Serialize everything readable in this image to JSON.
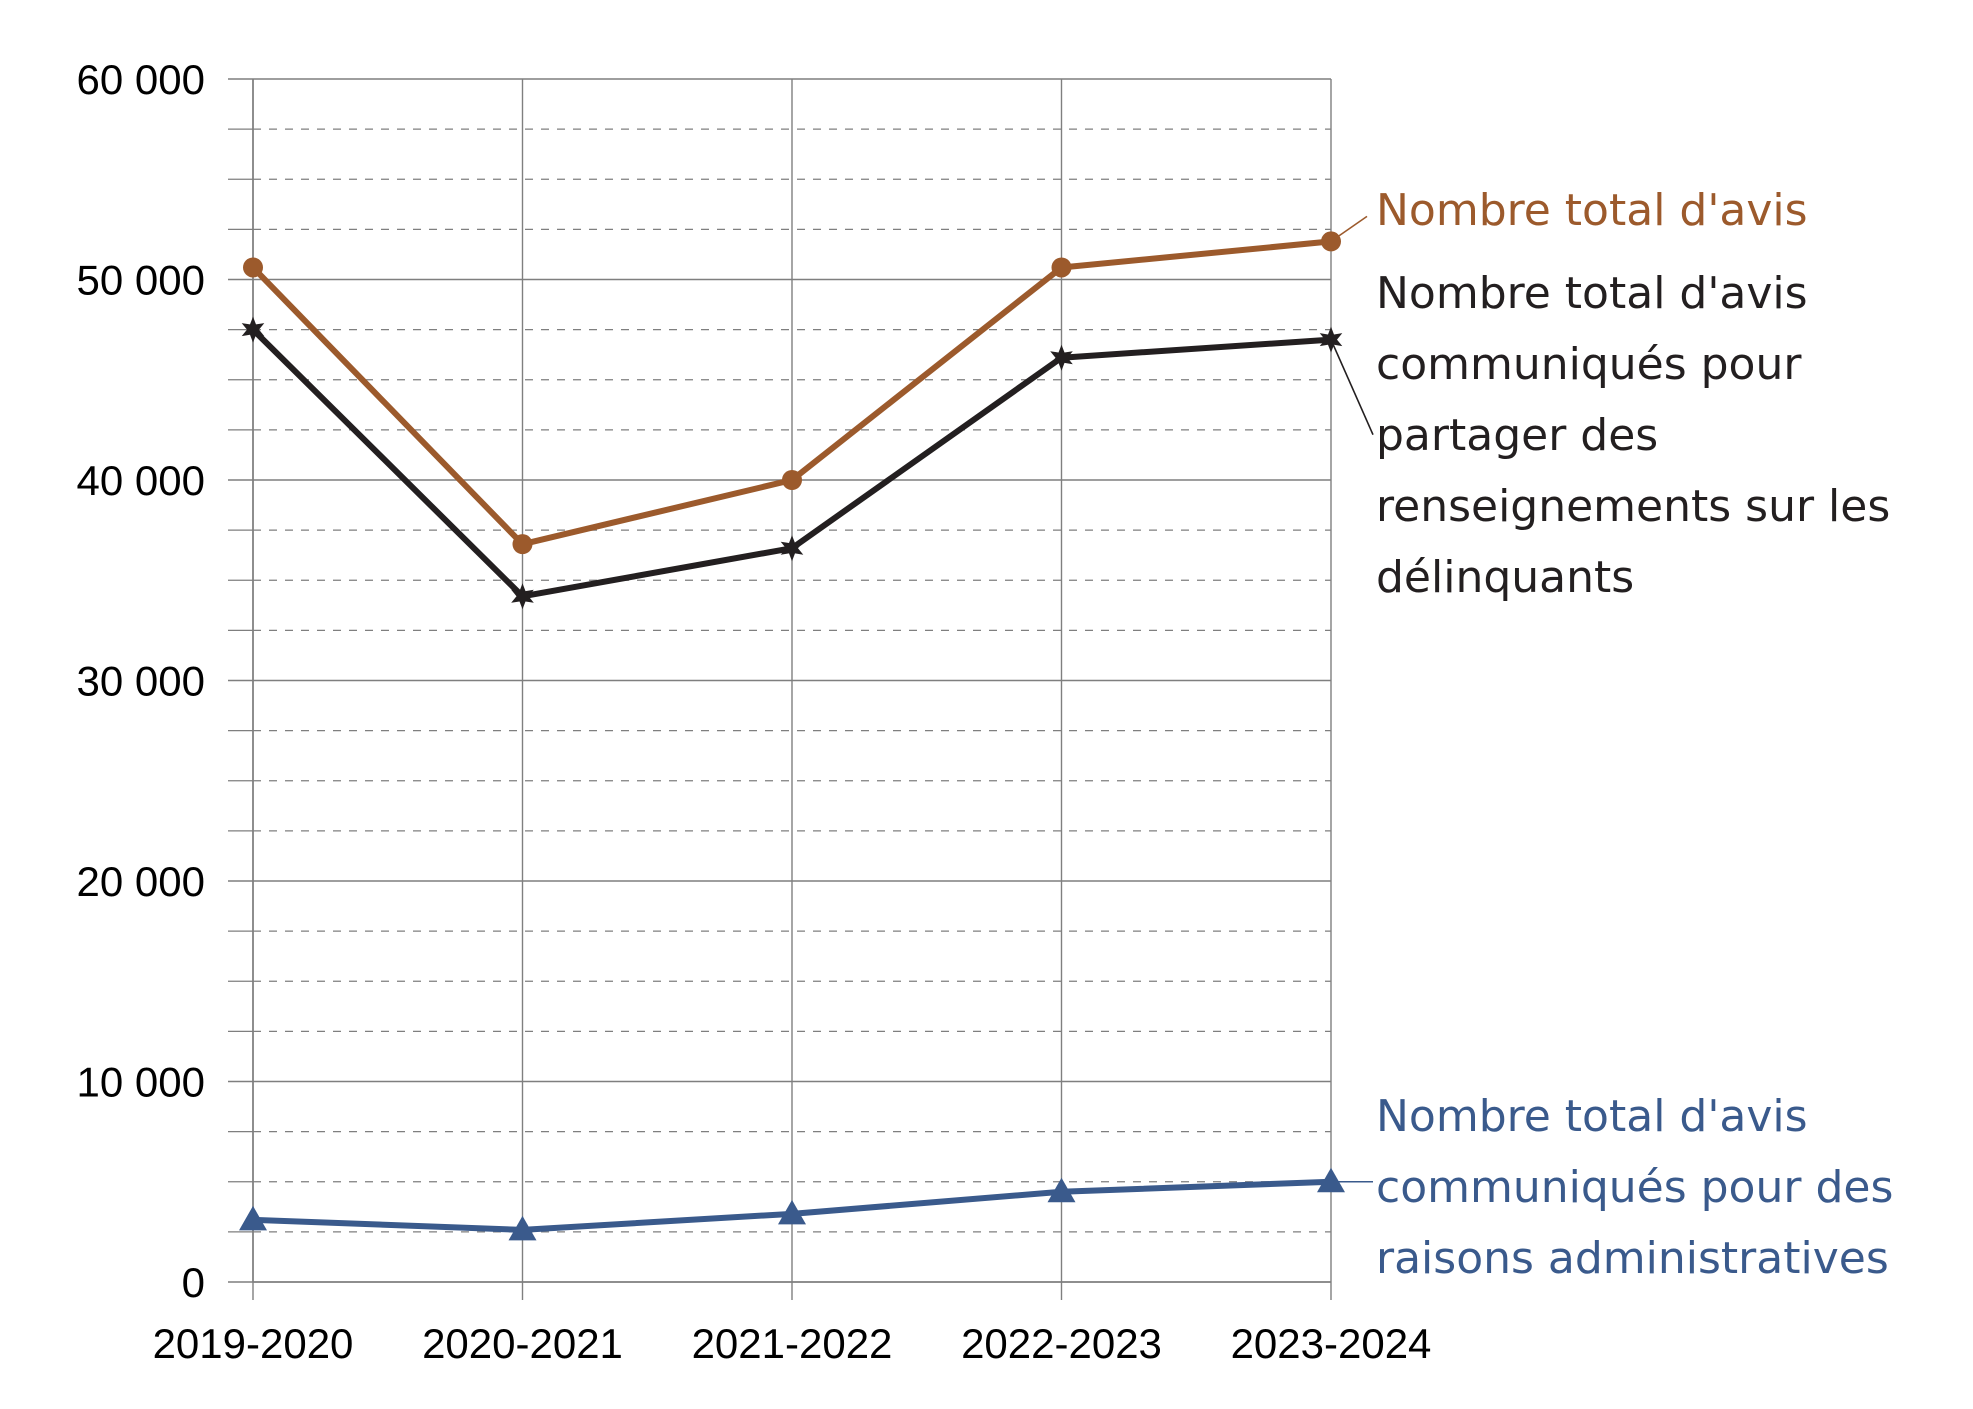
{
  "chart_data": {
    "type": "line",
    "title": "",
    "xlabel": "",
    "ylabel": "",
    "categories": [
      "2019-2020",
      "2020-2021",
      "2021-2022",
      "2022-2023",
      "2023-2024"
    ],
    "ylim": [
      0,
      60000
    ],
    "y_major_step": 10000,
    "y_minor_step": 2500,
    "y_tick_labels": [
      "0",
      "10 000",
      "20 000",
      "30 000",
      "40 000",
      "50 000",
      "60 000"
    ],
    "grid": true,
    "legend": "labels at right end of each line",
    "series": [
      {
        "name": "Nombre total d'avis",
        "label_lines": [
          "Nombre total d'avis"
        ],
        "values": [
          50600,
          36800,
          40000,
          50600,
          51900
        ],
        "color": "#9c5a2c",
        "marker": "circle"
      },
      {
        "name": "Nombre total d'avis communiqués pour partager des renseignements sur les délinquants",
        "label_lines": [
          "Nombre total d'avis",
          "communiqués pour",
          "partager des",
          "renseignements sur les",
          "délinquants"
        ],
        "values": [
          47500,
          34200,
          36600,
          46100,
          47000
        ],
        "color": "#231f20",
        "marker": "star"
      },
      {
        "name": "Nombre total d'avis communiqués pour des raisons administratives",
        "label_lines": [
          "Nombre total d'avis",
          "communiqués pour des",
          "raisons administratives"
        ],
        "values": [
          3100,
          2600,
          3400,
          4500,
          5000
        ],
        "color": "#3a5a8c",
        "marker": "triangle"
      }
    ]
  }
}
